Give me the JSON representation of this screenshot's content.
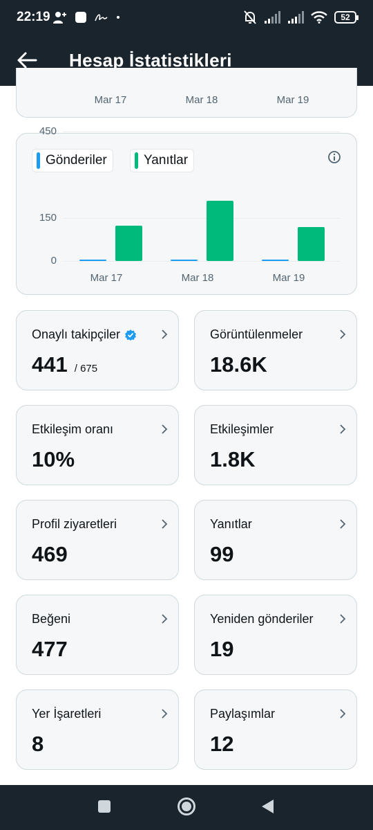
{
  "status_bar": {
    "time": "22:19",
    "battery": "52",
    "icons": [
      "person-add-icon",
      "app-square-icon",
      "signature-icon",
      "dot-icon",
      "muted-bell-icon",
      "signal-icon",
      "signal-icon",
      "wifi-icon",
      "battery-icon"
    ]
  },
  "header": {
    "title": "Hesap İstatistikleri",
    "back_icon": "arrow-left-icon"
  },
  "top_chart": {
    "x_labels": [
      "Mar 17",
      "Mar 18",
      "Mar 19"
    ]
  },
  "chart_data": {
    "type": "bar",
    "categories": [
      "Mar 17",
      "Mar 18",
      "Mar 19"
    ],
    "series": [
      {
        "name": "Gönderiler",
        "color": "#1d9bf0",
        "values": [
          1,
          3,
          1
        ]
      },
      {
        "name": "Yanıtlar",
        "color": "#00ba7c",
        "values": [
          122,
          210,
          119
        ]
      }
    ],
    "y_ticks": [
      0,
      150,
      450
    ],
    "y_tick_labels": [
      "0",
      "150",
      "450"
    ],
    "ylim": [
      0,
      450
    ],
    "grid": true,
    "legend": "top-left"
  },
  "colors": {
    "accent": "#1d9bf0",
    "replies": "#00ba7c",
    "header_bg": "#1a242d",
    "card_bg": "#f5f7f8"
  },
  "stats": [
    {
      "label": "Onaylı takipçiler",
      "value": "441",
      "sub": "/ 675",
      "verified": true
    },
    {
      "label": "Görüntülenmeler",
      "value": "18.6K"
    },
    {
      "label": "Etkileşim oranı",
      "value": "10%"
    },
    {
      "label": "Etkileşimler",
      "value": "1.8K"
    },
    {
      "label": "Profil ziyaretleri",
      "value": "469"
    },
    {
      "label": "Yanıtlar",
      "value": "99"
    },
    {
      "label": "Beğeni",
      "value": "477"
    },
    {
      "label": "Yeniden gönderiler",
      "value": "19"
    },
    {
      "label": "Yer İşaretleri",
      "value": "8"
    },
    {
      "label": "Paylaşımlar",
      "value": "12"
    }
  ]
}
